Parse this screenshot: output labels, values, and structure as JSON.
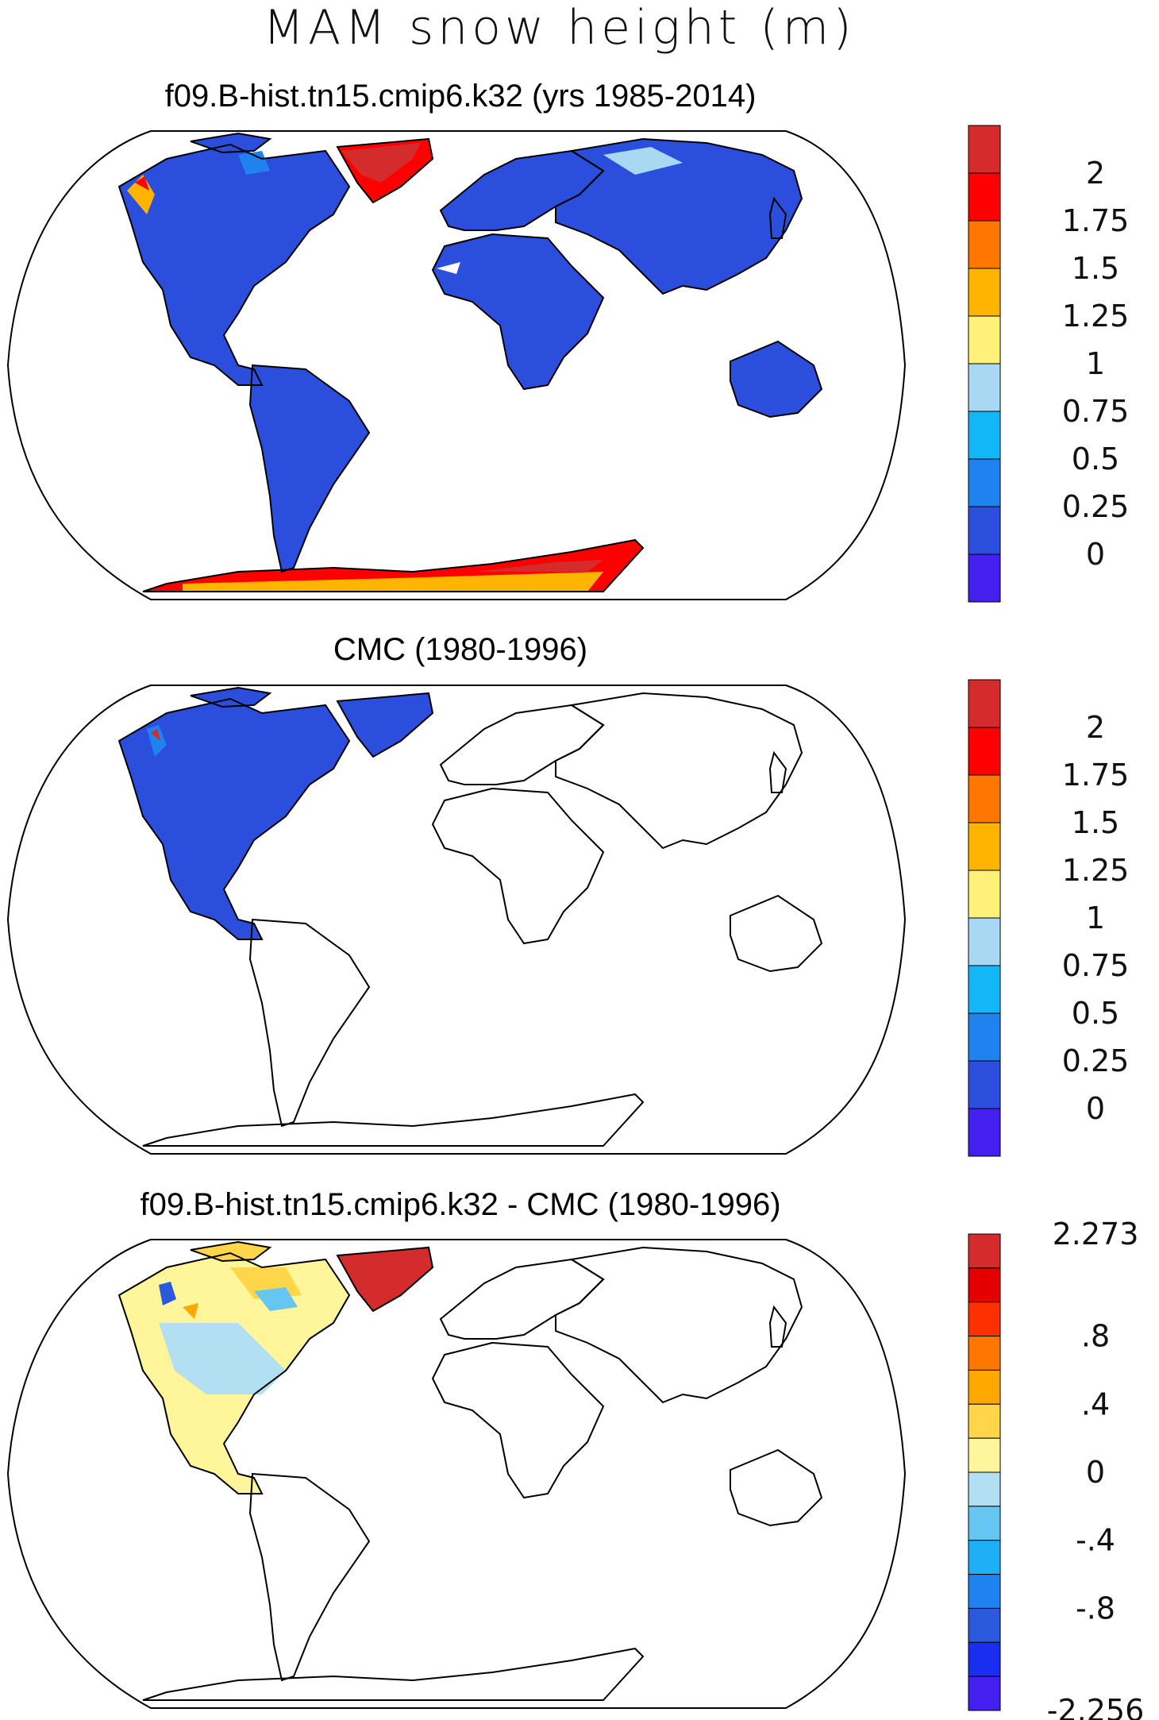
{
  "figure": {
    "title": "MAM snow height (m)"
  },
  "panels": [
    {
      "id": "model",
      "title": "f09.B-hist.tn15.cmip6.k32 (yrs 1985-2014)",
      "colorbar": {
        "labels": [
          "2",
          "1.75",
          "1.5",
          "1.25",
          "1",
          "0.75",
          "0.5",
          "0.25",
          "0"
        ],
        "colors": [
          "#d42c2c",
          "#ff0000",
          "#ff7700",
          "#ffb400",
          "#fff07a",
          "#a9d8f2",
          "#13b6f7",
          "#1e82ef",
          "#2b4fdc",
          "#4320f0"
        ]
      },
      "snow_coverage": [
        "North America",
        "Greenland",
        "Europe",
        "Asia",
        "Africa",
        "South America",
        "Australia",
        "Antarctica"
      ]
    },
    {
      "id": "obs",
      "title": "CMC (1980-1996)",
      "colorbar": {
        "labels": [
          "2",
          "1.75",
          "1.5",
          "1.25",
          "1",
          "0.75",
          "0.5",
          "0.25",
          "0"
        ],
        "colors": [
          "#d42c2c",
          "#ff0000",
          "#ff7700",
          "#ffb400",
          "#fff07a",
          "#a9d8f2",
          "#13b6f7",
          "#1e82ef",
          "#2b4fdc",
          "#4320f0"
        ]
      },
      "snow_coverage": [
        "North America",
        "Greenland"
      ]
    },
    {
      "id": "diff",
      "title": "f09.B-hist.tn15.cmip6.k32 - CMC (1980-1996)",
      "colorbar": {
        "labels": [
          "2.273",
          ".8",
          ".4",
          "0",
          "-.4",
          "-.8",
          "-2.256"
        ],
        "colors": [
          "#d42c2c",
          "#e40000",
          "#ff3000",
          "#ff7700",
          "#ffa800",
          "#ffd54a",
          "#fff59a",
          "#b3dff2",
          "#66c6f2",
          "#1eb0f7",
          "#1e82ef",
          "#2b59dc",
          "#1a2ef0",
          "#4320f0"
        ]
      },
      "snow_coverage": [
        "North America",
        "Greenland"
      ]
    }
  ]
}
